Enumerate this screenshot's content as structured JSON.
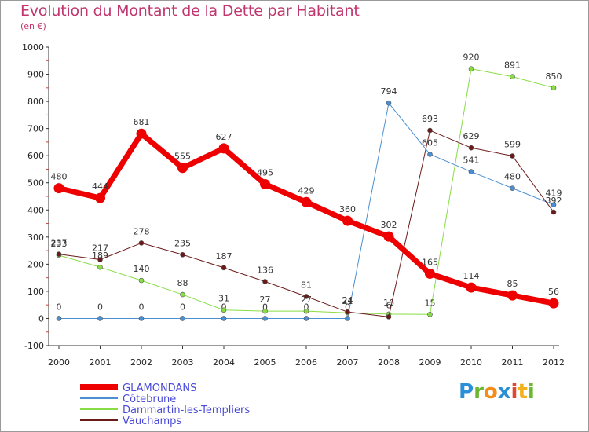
{
  "chart_data": {
    "type": "line",
    "title": "Evolution du Montant de la Dette par Habitant",
    "subtitle": "(en €)",
    "categories": [
      "2000",
      "2001",
      "2002",
      "2003",
      "2004",
      "2005",
      "2006",
      "2007",
      "2008",
      "2009",
      "2010",
      "2011",
      "2012"
    ],
    "ylim": [
      -100,
      1000
    ],
    "yticks": [
      -100,
      0,
      100,
      200,
      300,
      400,
      500,
      600,
      700,
      800,
      900,
      1000
    ],
    "grid": false,
    "legend_position": "bottom-left",
    "series": [
      {
        "name": "GLAMONDANS",
        "color": "#ee0000",
        "width": 7,
        "values": [
          480,
          444,
          681,
          555,
          627,
          495,
          429,
          360,
          302,
          165,
          114,
          85,
          56
        ],
        "labels": [
          "480",
          "444",
          "681",
          "555",
          "627",
          "495",
          "429",
          "360",
          "302",
          "165",
          "114",
          "85",
          "56"
        ]
      },
      {
        "name": "Côtebrune",
        "color": "#4b8fd0",
        "width": 1,
        "values": [
          0,
          0,
          0,
          0,
          0,
          0,
          0,
          0,
          794,
          605,
          541,
          480,
          419
        ],
        "labels": [
          "0",
          "0",
          "0",
          "0",
          "0",
          "0",
          "0",
          "0",
          "794",
          "605",
          "541",
          "480",
          "419"
        ]
      },
      {
        "name": "Dammartin-les-Templiers",
        "color": "#88dd44",
        "width": 1,
        "values": [
          233,
          189,
          140,
          88,
          31,
          27,
          27,
          21,
          16,
          15,
          920,
          891,
          850
        ],
        "labels": [
          "233",
          "189",
          "140",
          "88",
          "31",
          "27",
          "27",
          "21",
          "16",
          "15",
          "920",
          "891",
          "850"
        ]
      },
      {
        "name": "Vauchamps",
        "color": "#6b1a1a",
        "width": 1,
        "values": [
          237,
          217,
          278,
          235,
          187,
          136,
          81,
          24,
          6,
          693,
          629,
          599,
          392
        ],
        "labels": [
          "237",
          "217",
          "278",
          "235",
          "187",
          "136",
          "81",
          "24",
          "6",
          "693",
          "629",
          "599",
          "392"
        ]
      }
    ]
  },
  "logo": {
    "letters": [
      "P",
      "r",
      "o",
      "x",
      "i",
      "t",
      "i"
    ],
    "colors": [
      "#2a8fd6",
      "#6ab82e",
      "#f28c1b",
      "#2a8fd6",
      "#e2462e",
      "#f2b21b",
      "#6ab82e"
    ]
  }
}
